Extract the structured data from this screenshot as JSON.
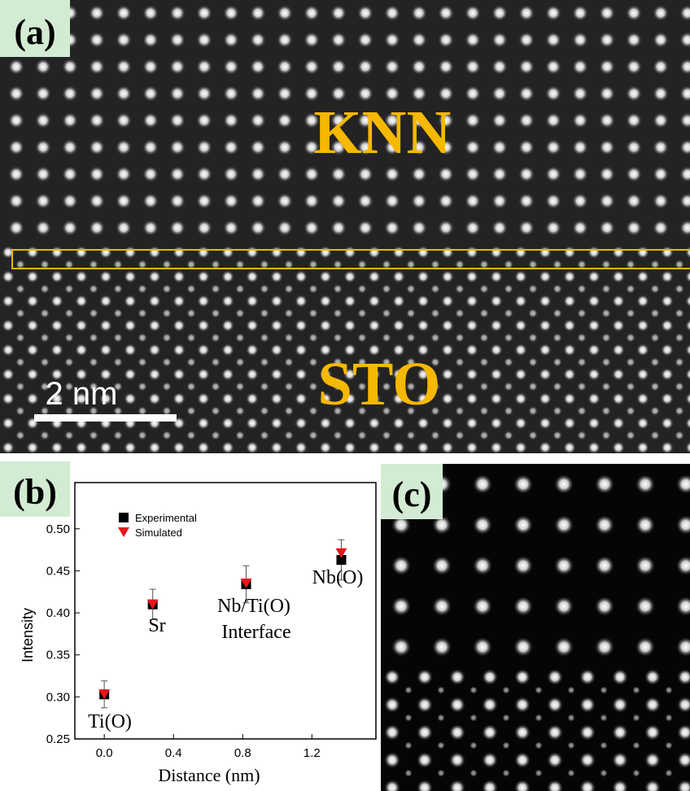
{
  "panels": {
    "a": {
      "label": "(a)",
      "top_text": "KNN",
      "bottom_text": "STO",
      "scale_bar": "2 nm"
    },
    "b": {
      "label": "(b)"
    },
    "c": {
      "label": "(c)"
    }
  },
  "chart_data": {
    "type": "scatter",
    "x_label": "Distance (nm)",
    "y_label": "Intensity",
    "x": [
      0,
      0.28,
      0.82,
      1.37
    ],
    "series": [
      {
        "name": "Experimental",
        "color": "#000000",
        "marker": "square",
        "values": [
          0.303,
          0.41,
          0.434,
          0.463
        ],
        "errors": [
          0.016,
          0.018,
          0.022,
          0.024
        ]
      },
      {
        "name": "Simulated",
        "color": "#e8151b",
        "marker": "triangle-down",
        "values": [
          0.303,
          0.41,
          0.435,
          0.471
        ]
      }
    ],
    "annotations": [
      "Ti(O)",
      "Sr",
      "Nb/Ti(O)",
      "Interface",
      "Nb(O)"
    ],
    "xlim": [
      -0.17,
      1.57
    ],
    "ylim": [
      0.25,
      0.555
    ],
    "xticks": [
      {
        "value": 0,
        "label": "0.0"
      },
      0.4,
      0.8,
      1.2
    ],
    "yticks": [
      0.25,
      {
        "value": 0.3,
        "label": "0.30"
      },
      0.35,
      {
        "value": 0.4,
        "label": "0.40"
      },
      0.45,
      {
        "value": 0.5,
        "label": "0.50"
      }
    ],
    "legend": "upper left"
  }
}
